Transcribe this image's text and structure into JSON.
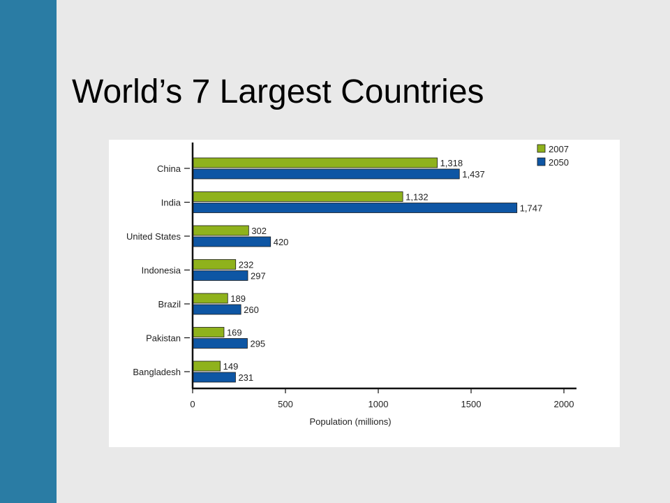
{
  "slide": {
    "title": "World’s 7 Largest Countries"
  },
  "colors": {
    "sidebar": "#2a7ca4",
    "background": "#e9e9e9",
    "series_2007": "#8fb21c",
    "series_2050": "#0e56a4"
  },
  "chart_data": {
    "type": "bar",
    "orientation": "horizontal",
    "title": "",
    "xlabel": "Population (millions)",
    "ylabel": "",
    "xlim": [
      0,
      2000
    ],
    "x_ticks": [
      "0",
      "500",
      "1000",
      "1500",
      "2000"
    ],
    "categories": [
      "China",
      "India",
      "United States",
      "Indonesia",
      "Brazil",
      "Pakistan",
      "Bangladesh"
    ],
    "series": [
      {
        "name": "2007",
        "values": [
          1318,
          1132,
          302,
          232,
          189,
          169,
          149
        ],
        "labels": [
          "1,318",
          "1,132",
          "302",
          "232",
          "189",
          "169",
          "149"
        ]
      },
      {
        "name": "2050",
        "values": [
          1437,
          1747,
          420,
          297,
          260,
          295,
          231
        ],
        "labels": [
          "1,437",
          "1,747",
          "420",
          "297",
          "260",
          "295",
          "231"
        ]
      }
    ],
    "legend": "top-right",
    "grid": false
  }
}
